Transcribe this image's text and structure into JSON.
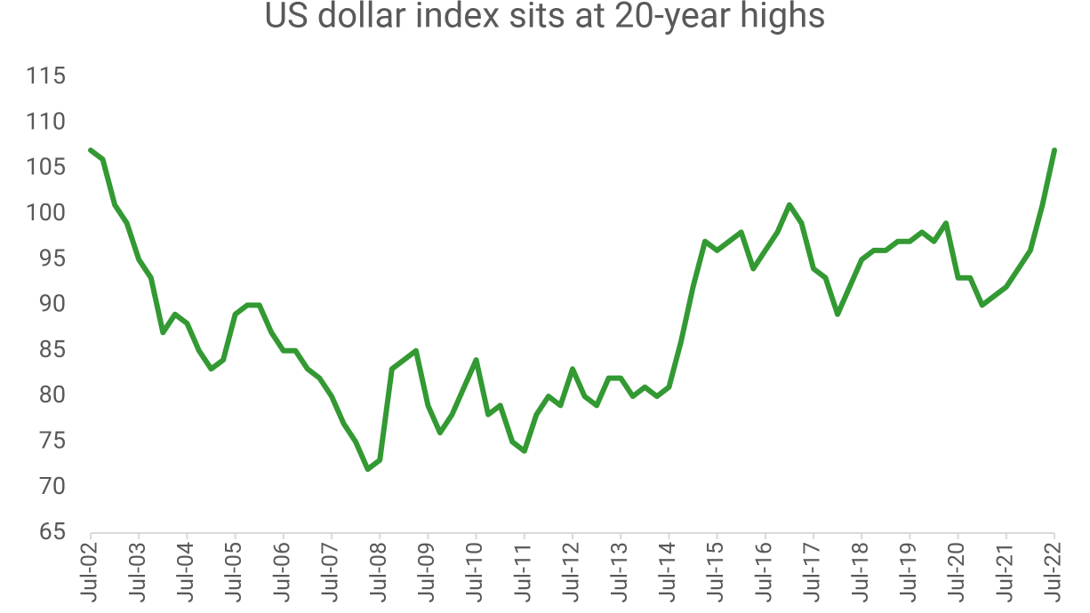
{
  "chart_data": {
    "type": "line",
    "title": "US dollar index sits at 20-year highs",
    "x": [
      "Jul-02",
      "Oct-02",
      "Jan-03",
      "Apr-03",
      "Jul-03",
      "Oct-03",
      "Jan-04",
      "Apr-04",
      "Jul-04",
      "Oct-04",
      "Jan-05",
      "Apr-05",
      "Jul-05",
      "Oct-05",
      "Jan-06",
      "Apr-06",
      "Jul-06",
      "Oct-06",
      "Jan-07",
      "Apr-07",
      "Jul-07",
      "Oct-07",
      "Jan-08",
      "Apr-08",
      "Jul-08",
      "Oct-08",
      "Jan-09",
      "Apr-09",
      "Jul-09",
      "Oct-09",
      "Jan-10",
      "Apr-10",
      "Jul-10",
      "Oct-10",
      "Jan-11",
      "Apr-11",
      "Jul-11",
      "Oct-11",
      "Jan-12",
      "Apr-12",
      "Jul-12",
      "Oct-12",
      "Jan-13",
      "Apr-13",
      "Jul-13",
      "Oct-13",
      "Jan-14",
      "Apr-14",
      "Jul-14",
      "Oct-14",
      "Jan-15",
      "Apr-15",
      "Jul-15",
      "Oct-15",
      "Jan-16",
      "Apr-16",
      "Jul-16",
      "Oct-16",
      "Jan-17",
      "Apr-17",
      "Jul-17",
      "Oct-17",
      "Jan-18",
      "Apr-18",
      "Jul-18",
      "Oct-18",
      "Jan-19",
      "Apr-19",
      "Jul-19",
      "Oct-19",
      "Jan-20",
      "Apr-20",
      "Jul-20",
      "Oct-20",
      "Jan-21",
      "Apr-21",
      "Jul-21",
      "Oct-21",
      "Jan-22",
      "Apr-22",
      "Jul-22"
    ],
    "values": [
      107,
      106,
      101,
      99,
      95,
      93,
      87,
      89,
      88,
      85,
      83,
      84,
      89,
      90,
      90,
      87,
      85,
      85,
      83,
      82,
      80,
      77,
      75,
      72,
      73,
      83,
      84,
      85,
      79,
      76,
      78,
      81,
      84,
      78,
      79,
      75,
      74,
      78,
      80,
      79,
      83,
      80,
      79,
      82,
      82,
      80,
      81,
      80,
      81,
      86,
      92,
      97,
      96,
      97,
      98,
      94,
      96,
      98,
      101,
      99,
      94,
      93,
      89,
      92,
      95,
      96,
      96,
      97,
      97,
      98,
      97,
      99,
      93,
      93,
      90,
      91,
      92,
      94,
      96,
      101,
      107
    ],
    "color": "#339933",
    "ylim": [
      65,
      115
    ],
    "yticks": [
      65,
      70,
      75,
      80,
      85,
      90,
      95,
      100,
      105,
      110,
      115
    ],
    "xticks": [
      "Jul-02",
      "Jul-03",
      "Jul-04",
      "Jul-05",
      "Jul-06",
      "Jul-07",
      "Jul-08",
      "Jul-09",
      "Jul-10",
      "Jul-11",
      "Jul-12",
      "Jul-13",
      "Jul-14",
      "Jul-15",
      "Jul-16",
      "Jul-17",
      "Jul-18",
      "Jul-19",
      "Jul-20",
      "Jul-21",
      "Jul-22"
    ],
    "grid": false
  }
}
